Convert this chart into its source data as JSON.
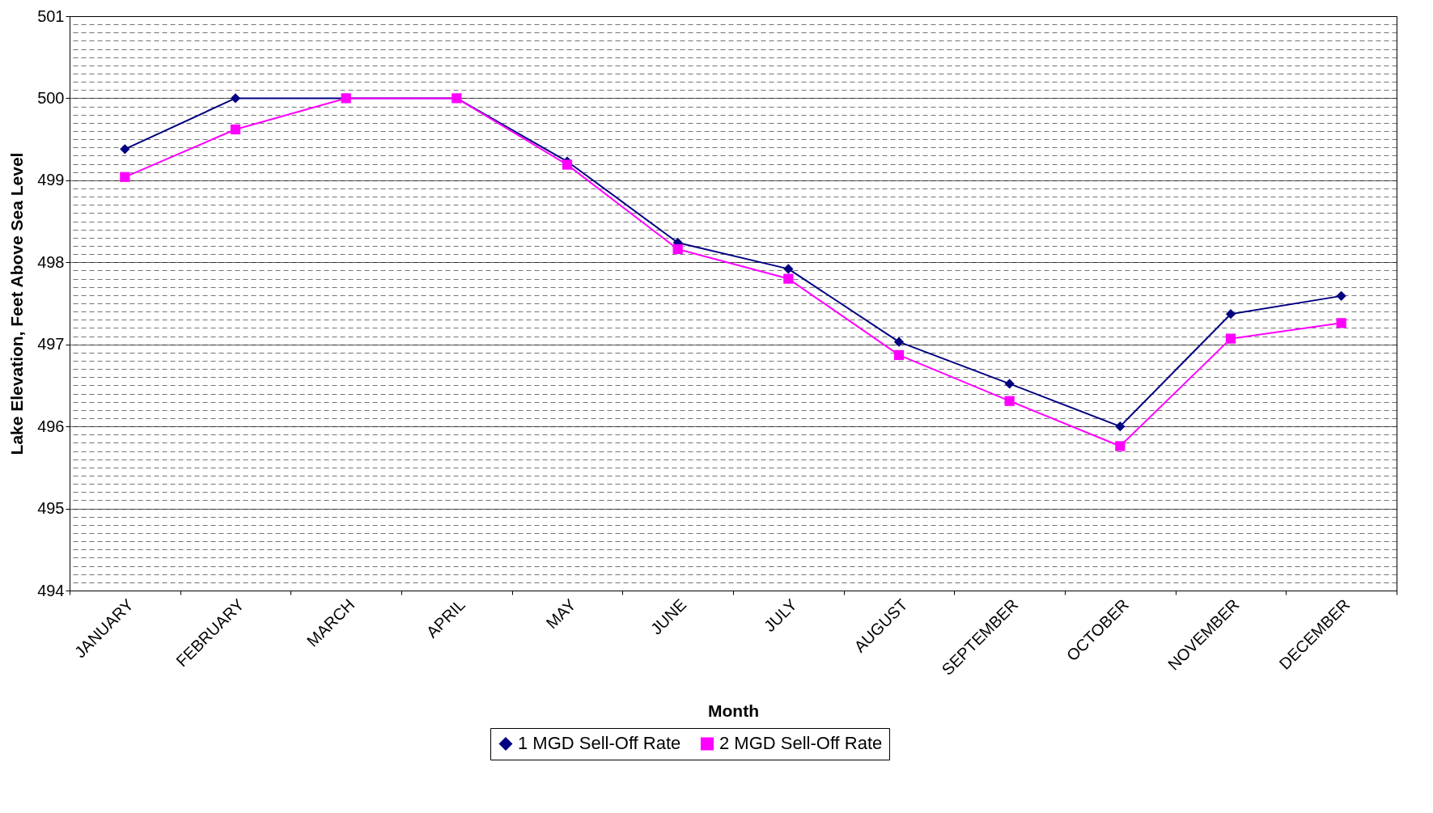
{
  "chart_data": {
    "type": "line",
    "xlabel": "Month",
    "ylabel": "Lake Elevation, Feet Above Sea Level",
    "categories": [
      "JANUARY",
      "FEBRUARY",
      "MARCH",
      "APRIL",
      "MAY",
      "JUNE",
      "JULY",
      "AUGUST",
      "SEPTEMBER",
      "OCTOBER",
      "NOVEMBER",
      "DECEMBER"
    ],
    "series": [
      {
        "name": "1 MGD Sell-Off Rate",
        "color": "#000080",
        "marker": "diamond",
        "values": [
          499.38,
          500.0,
          500.0,
          500.0,
          499.23,
          498.24,
          497.92,
          497.03,
          496.52,
          496.0,
          497.37,
          497.59
        ]
      },
      {
        "name": "2 MGD Sell-Off Rate",
        "color": "#ff00ff",
        "marker": "square",
        "values": [
          499.04,
          499.62,
          500.0,
          500.0,
          499.19,
          498.16,
          497.8,
          496.87,
          496.31,
          495.76,
          497.07,
          497.26
        ]
      }
    ],
    "ylim": [
      494,
      501
    ],
    "yticks": [
      494,
      495,
      496,
      497,
      498,
      499,
      500,
      501
    ],
    "grid": "y",
    "legend": "bottom",
    "line_style": "solid"
  }
}
